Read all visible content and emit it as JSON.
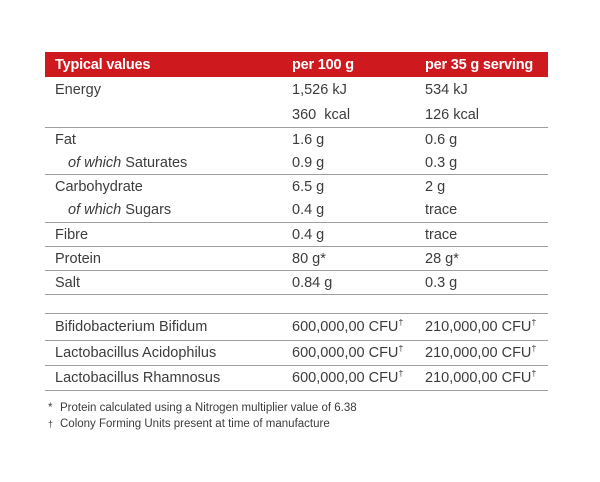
{
  "colors": {
    "header_bg": "#ce1a1e",
    "header_text": "#ffffff",
    "body_text": "#3c3c3c",
    "divider": "#9e9e9e",
    "background": "#ffffff"
  },
  "table": {
    "header": {
      "col1": "Typical values",
      "col2": "per 100 g",
      "col3": "per 35 g serving"
    },
    "rows": [
      {
        "label": "Energy",
        "per100": "1,526 kJ",
        "per35": "534 kJ"
      },
      {
        "label": "",
        "per100": "360  kcal",
        "per35": "126 kcal"
      },
      {
        "label": "Fat",
        "per100": "1.6 g",
        "per35": "0.6 g"
      },
      {
        "label_italic": "of which",
        "label_rest": " Saturates",
        "per100": "0.9 g",
        "per35": "0.3 g"
      },
      {
        "label": "Carbohydrate",
        "per100": "6.5 g",
        "per35": "2 g"
      },
      {
        "label_italic": "of which",
        "label_rest": " Sugars",
        "per100": "0.4 g",
        "per35": "trace"
      },
      {
        "label": "Fibre",
        "per100": "0.4 g",
        "per35": "trace"
      },
      {
        "label": "Protein",
        "per100": "80 g*",
        "per35": "28 g*"
      },
      {
        "label": "Salt",
        "per100": "0.84 g",
        "per35": "0.3 g"
      },
      {
        "label": "Bifidobacterium Bifidum",
        "per100": "600,000,00 CFU",
        "per100_sup": "†",
        "per35": "210,000,00 CFU",
        "per35_sup": "†"
      },
      {
        "label": "Lactobacillus Acidophilus",
        "per100": "600,000,00 CFU",
        "per100_sup": "†",
        "per35": "210,000,00 CFU",
        "per35_sup": "†"
      },
      {
        "label": "Lactobacillus Rhamnosus",
        "per100": "600,000,00 CFU",
        "per100_sup": "†",
        "per35": "210,000,00 CFU",
        "per35_sup": "†"
      }
    ]
  },
  "footnotes": [
    {
      "marker": "*",
      "text": "Protein calculated using a Nitrogen multiplier value of 6.38"
    },
    {
      "marker": "†",
      "text": "Colony Forming Units present at time of manufacture"
    }
  ]
}
